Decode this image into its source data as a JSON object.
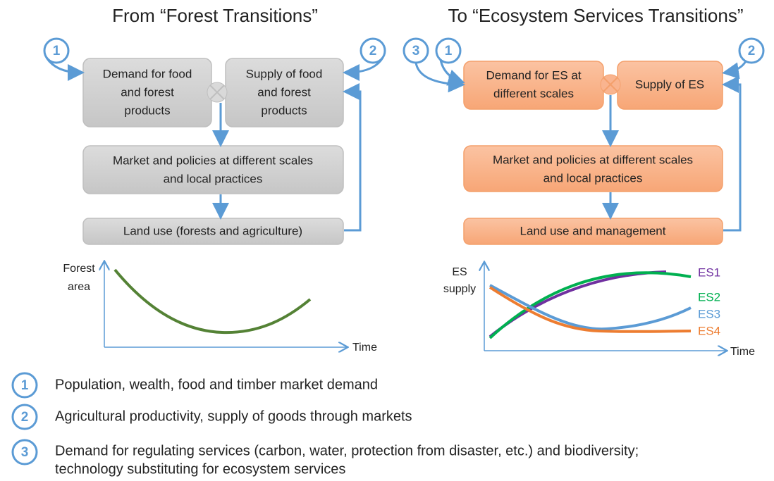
{
  "left": {
    "title": "From “Forest Transitions”",
    "markers": [
      "1",
      "2"
    ],
    "boxes": {
      "demand": [
        "Demand for food",
        "and forest",
        "products"
      ],
      "supply": [
        "Supply of food",
        "and forest",
        "products"
      ],
      "market": [
        "Market and policies at different scales",
        "and local practices"
      ],
      "land_use": [
        "Land use (forests and agriculture)"
      ]
    },
    "chart": {
      "y_label": [
        "Forest",
        "area"
      ],
      "x_label": "Time"
    }
  },
  "right": {
    "title": "To “Ecosystem Services Transitions”",
    "markers": [
      "3",
      "1",
      "2"
    ],
    "boxes": {
      "demand": [
        "Demand for ES at",
        "different scales"
      ],
      "supply": [
        "Supply of ES"
      ],
      "market": [
        "Market and policies at different scales",
        "and local practices"
      ],
      "land_use": [
        "Land use and management"
      ]
    },
    "chart": {
      "y_label": [
        "ES",
        "supply"
      ],
      "x_label": "Time",
      "curve_labels": [
        "ES1",
        "ES2",
        "ES3",
        "ES4"
      ]
    }
  },
  "legend": [
    {
      "number": "1",
      "text": [
        "Population, wealth, food and timber market demand"
      ]
    },
    {
      "number": "2",
      "text": [
        "Agricultural productivity, supply of goods through markets"
      ]
    },
    {
      "number": "3",
      "text": [
        "Demand for regulating services (carbon, water, protection from disaster, etc.) and biodiversity;",
        "technology substituting for ecosystem services"
      ]
    }
  ]
}
